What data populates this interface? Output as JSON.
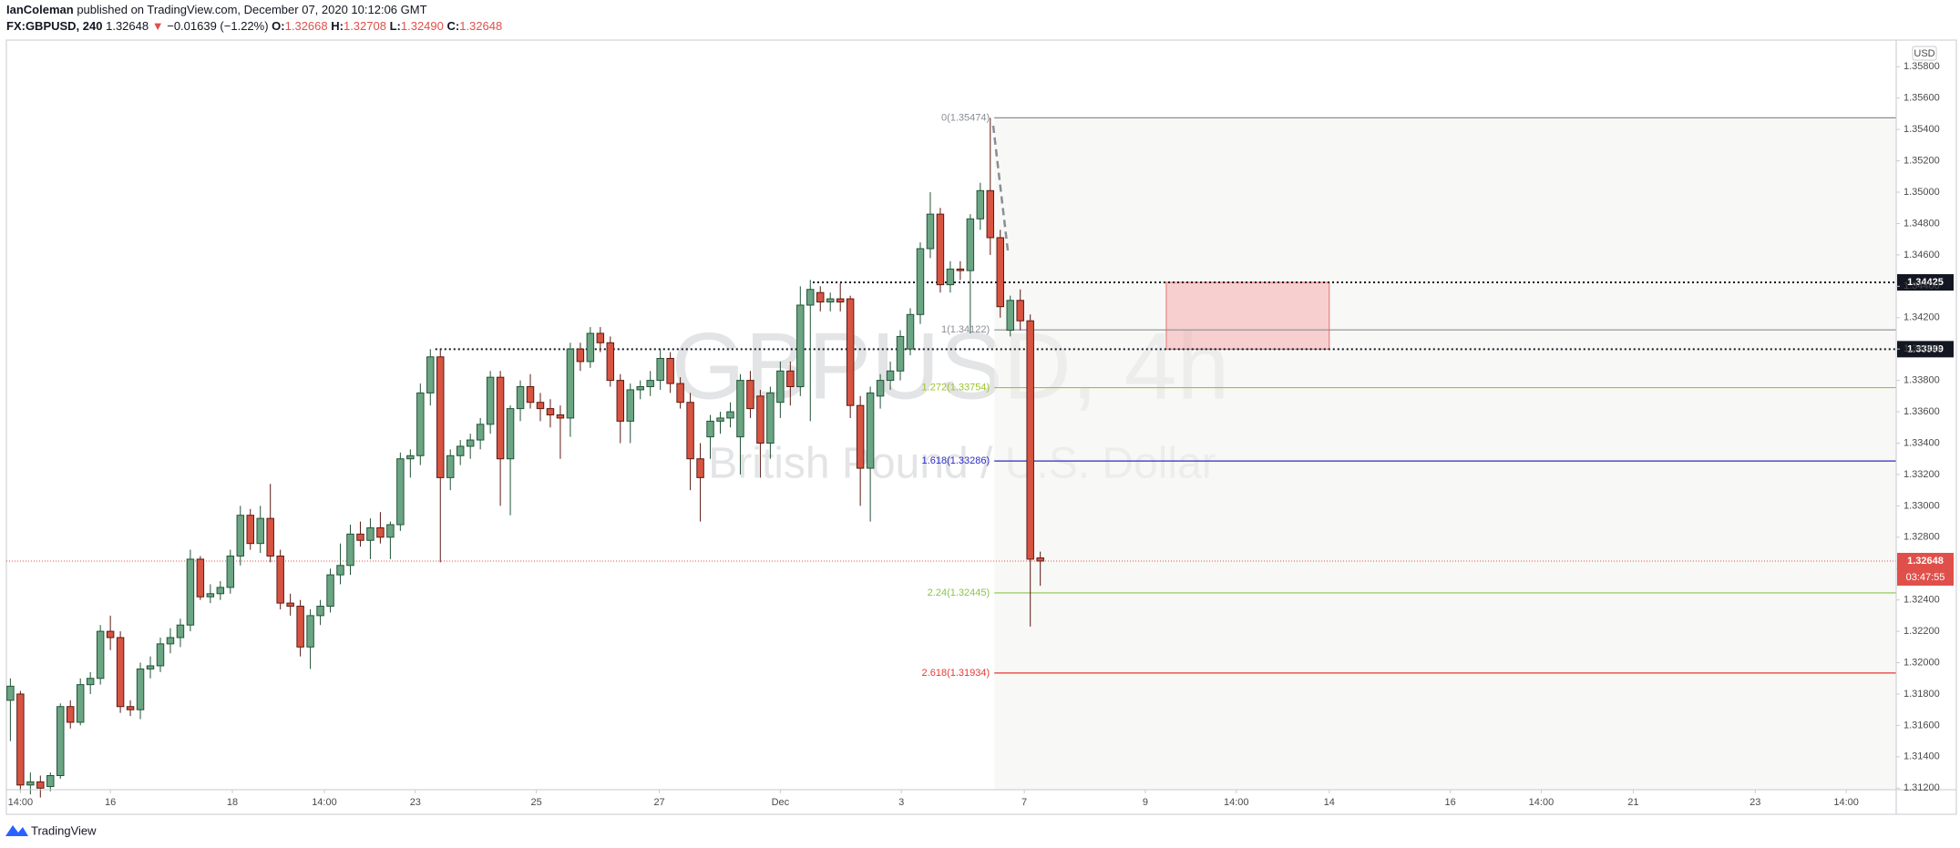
{
  "header": {
    "author": "IanColeman",
    "published": "published on TradingView.com, December 07, 2020 10:12:06 GMT",
    "symbol": "FX:GBPUSD, 240",
    "last": "1.32648",
    "arrow": "▼",
    "change": "−0.01639 (−1.22%)",
    "ohlc": [
      {
        "label": "O:",
        "value": "1.32668"
      },
      {
        "label": "H:",
        "value": "1.32708"
      },
      {
        "label": "L:",
        "value": "1.32490"
      },
      {
        "label": "C:",
        "value": "1.32648"
      }
    ]
  },
  "footer": {
    "brand": "TradingView"
  },
  "chart_data": {
    "type": "candlestick",
    "currency": "USD",
    "watermark_title": "GBPUSD, 4h",
    "watermark_subtitle": "British Pound / U.S. Dollar",
    "up_color": "#6ba583",
    "down_color": "#d75442",
    "up_border": "#225437",
    "down_border": "#5b1a13",
    "grid": false,
    "xlim": [
      -0.4,
      188.6
    ],
    "ylim": [
      1.3119,
      1.3597
    ],
    "xticks": [
      {
        "value": 1,
        "label": "14:00"
      },
      {
        "value": 10,
        "label": "16"
      },
      {
        "value": 22.2,
        "label": "18"
      },
      {
        "value": 31.4,
        "label": "14:00"
      },
      {
        "value": 40.5,
        "label": "23"
      },
      {
        "value": 52.6,
        "label": "25"
      },
      {
        "value": 64.9,
        "label": "27"
      },
      {
        "value": 77,
        "label": "Dec"
      },
      {
        "value": 89.1,
        "label": "3"
      },
      {
        "value": 101.4,
        "label": "7"
      },
      {
        "value": 113.5,
        "label": "9"
      },
      {
        "value": 122.6,
        "label": "14:00"
      },
      {
        "value": 131.9,
        "label": "14"
      },
      {
        "value": 144,
        "label": "16"
      },
      {
        "value": 153.1,
        "label": "14:00"
      },
      {
        "value": 162.3,
        "label": "21"
      },
      {
        "value": 174.5,
        "label": "23"
      },
      {
        "value": 183.6,
        "label": "14:00"
      }
    ],
    "yticks": [
      {
        "value": 1.312,
        "label": "1.31200"
      },
      {
        "value": 1.314,
        "label": "1.31400"
      },
      {
        "value": 1.316,
        "label": "1.31600"
      },
      {
        "value": 1.318,
        "label": "1.31800"
      },
      {
        "value": 1.32,
        "label": "1.32000"
      },
      {
        "value": 1.322,
        "label": "1.32200"
      },
      {
        "value": 1.324,
        "label": "1.32400"
      },
      {
        "value": 1.326,
        "label": "1.32600"
      },
      {
        "value": 1.328,
        "label": "1.32800"
      },
      {
        "value": 1.33,
        "label": "1.33000"
      },
      {
        "value": 1.332,
        "label": "1.33200"
      },
      {
        "value": 1.334,
        "label": "1.33400"
      },
      {
        "value": 1.336,
        "label": "1.33600"
      },
      {
        "value": 1.338,
        "label": "1.33800"
      },
      {
        "value": 1.34,
        "label": "1.34000"
      },
      {
        "value": 1.342,
        "label": "1.34200"
      },
      {
        "value": 1.344,
        "label": "1.34400"
      },
      {
        "value": 1.346,
        "label": "1.34600"
      },
      {
        "value": 1.348,
        "label": "1.34800"
      },
      {
        "value": 1.35,
        "label": "1.35000"
      },
      {
        "value": 1.352,
        "label": "1.35200"
      },
      {
        "value": 1.354,
        "label": "1.35400"
      },
      {
        "value": 1.356,
        "label": "1.35600"
      },
      {
        "value": 1.358,
        "label": "1.35800"
      }
    ],
    "open": [
      1.3176,
      1.318,
      1.3122,
      1.3124,
      1.3121,
      1.3128,
      1.3172,
      1.3162,
      1.3186,
      1.319,
      1.322,
      1.3216,
      1.3172,
      1.317,
      1.3196,
      1.3198,
      1.3212,
      1.3216,
      1.3224,
      1.3266,
      1.3242,
      1.3244,
      1.3248,
      1.3268,
      1.3294,
      1.3276,
      1.3292,
      1.3268,
      1.3238,
      1.3236,
      1.321,
      1.323,
      1.3236,
      1.3256,
      1.3262,
      1.3282,
      1.3278,
      1.3286,
      1.328,
      1.3288,
      1.333,
      1.3332,
      1.3372,
      1.3395,
      1.3318,
      1.3332,
      1.3338,
      1.3342,
      1.3352,
      1.3382,
      1.333,
      1.3362,
      1.3376,
      1.3366,
      1.3362,
      1.3358,
      1.3356,
      1.34,
      1.3392,
      1.341,
      1.3404,
      1.338,
      1.3354,
      1.3374,
      1.3376,
      1.338,
      1.3394,
      1.3378,
      1.3366,
      1.333,
      1.3344,
      1.3354,
      1.3356,
      1.3344,
      1.338,
      1.337,
      1.334,
      1.3366,
      1.3386,
      1.3376,
      1.3428,
      1.3436,
      1.343,
      1.3432,
      1.3432,
      1.3364,
      1.3324,
      1.337,
      1.338,
      1.3386,
      1.34,
      1.3422,
      1.3464,
      1.3486,
      1.3441,
      1.3451,
      1.345,
      1.3483,
      1.3501,
      1.3471,
      1.3412,
      1.3431,
      1.3418,
      1.32668
    ],
    "high": [
      1.319,
      1.3182,
      1.313,
      1.3128,
      1.313,
      1.3174,
      1.3176,
      1.319,
      1.3194,
      1.3224,
      1.323,
      1.322,
      1.3176,
      1.32,
      1.3204,
      1.3216,
      1.3222,
      1.3228,
      1.3272,
      1.3268,
      1.325,
      1.3252,
      1.3272,
      1.33,
      1.3298,
      1.33,
      1.3314,
      1.3272,
      1.3244,
      1.324,
      1.3234,
      1.324,
      1.326,
      1.3276,
      1.3288,
      1.329,
      1.3292,
      1.3296,
      1.329,
      1.3334,
      1.3336,
      1.3378,
      1.34,
      1.34,
      1.3336,
      1.3342,
      1.3346,
      1.3356,
      1.3386,
      1.3386,
      1.3364,
      1.338,
      1.3384,
      1.3372,
      1.3368,
      1.3364,
      1.3404,
      1.3404,
      1.3414,
      1.3414,
      1.3408,
      1.3384,
      1.3378,
      1.338,
      1.3386,
      1.34,
      1.3398,
      1.3382,
      1.3372,
      1.334,
      1.3358,
      1.336,
      1.3366,
      1.3384,
      1.3386,
      1.3374,
      1.3376,
      1.3392,
      1.3392,
      1.344,
      1.3444,
      1.344,
      1.3436,
      1.3442,
      1.3434,
      1.337,
      1.3376,
      1.3384,
      1.3392,
      1.3412,
      1.3426,
      1.3468,
      1.35,
      1.349,
      1.3456,
      1.3456,
      1.3486,
      1.3506,
      1.35474,
      1.3476,
      1.3434,
      1.3438,
      1.3422,
      1.32708
    ],
    "low": [
      1.315,
      1.3118,
      1.3116,
      1.3114,
      1.3118,
      1.3126,
      1.3158,
      1.316,
      1.318,
      1.3186,
      1.3208,
      1.3168,
      1.3166,
      1.3164,
      1.319,
      1.3194,
      1.3206,
      1.321,
      1.322,
      1.324,
      1.3238,
      1.324,
      1.3244,
      1.3262,
      1.3272,
      1.327,
      1.3264,
      1.3234,
      1.323,
      1.3204,
      1.3196,
      1.3224,
      1.3232,
      1.325,
      1.3256,
      1.3274,
      1.3266,
      1.3276,
      1.3266,
      1.3284,
      1.3318,
      1.3326,
      1.3364,
      1.3264,
      1.331,
      1.3326,
      1.333,
      1.3336,
      1.3346,
      1.33,
      1.3294,
      1.3354,
      1.3362,
      1.3354,
      1.335,
      1.333,
      1.3344,
      1.3386,
      1.3388,
      1.3398,
      1.3376,
      1.334,
      1.334,
      1.3368,
      1.337,
      1.3374,
      1.3372,
      1.3362,
      1.331,
      1.329,
      1.333,
      1.3346,
      1.335,
      1.332,
      1.3356,
      1.3318,
      1.333,
      1.3356,
      1.3364,
      1.337,
      1.3354,
      1.3424,
      1.3424,
      1.3424,
      1.3356,
      1.33,
      1.329,
      1.3362,
      1.3374,
      1.338,
      1.3396,
      1.3416,
      1.3458,
      1.3436,
      1.3436,
      1.3444,
      1.341,
      1.3476,
      1.346,
      1.342,
      1.3408,
      1.3412,
      1.3223,
      1.3249
    ],
    "close": [
      1.3185,
      1.3122,
      1.3124,
      1.312,
      1.3128,
      1.3172,
      1.3162,
      1.3186,
      1.319,
      1.322,
      1.3216,
      1.3172,
      1.317,
      1.3196,
      1.3198,
      1.3212,
      1.3216,
      1.3224,
      1.3266,
      1.3242,
      1.3244,
      1.3248,
      1.3268,
      1.3294,
      1.3276,
      1.3292,
      1.3268,
      1.3238,
      1.3236,
      1.321,
      1.323,
      1.3236,
      1.3256,
      1.3262,
      1.3282,
      1.3278,
      1.3286,
      1.328,
      1.3288,
      1.333,
      1.3332,
      1.3372,
      1.3395,
      1.3318,
      1.3332,
      1.3338,
      1.3342,
      1.3352,
      1.3382,
      1.333,
      1.3362,
      1.3376,
      1.3366,
      1.3362,
      1.3358,
      1.3356,
      1.34,
      1.3392,
      1.341,
      1.3404,
      1.338,
      1.3354,
      1.3374,
      1.3376,
      1.338,
      1.3394,
      1.3378,
      1.3366,
      1.333,
      1.3318,
      1.3354,
      1.3356,
      1.336,
      1.338,
      1.3362,
      1.334,
      1.3372,
      1.3386,
      1.3376,
      1.3428,
      1.3438,
      1.343,
      1.3432,
      1.343,
      1.3364,
      1.3324,
      1.3372,
      1.338,
      1.3386,
      1.3408,
      1.3422,
      1.3464,
      1.3486,
      1.3441,
      1.3451,
      1.345,
      1.3483,
      1.3501,
      1.3471,
      1.3427,
      1.3431,
      1.3418,
      1.3266,
      1.32648
    ],
    "fib_levels": [
      {
        "label": "0(1.35474)",
        "value": 1.35474,
        "color": "#8a8d96"
      },
      {
        "label": "1(1.34122)",
        "value": 1.34122,
        "color": "#8a8d96"
      },
      {
        "label": "1.272(1.33754)",
        "value": 1.33754,
        "color": "#9cc32e"
      },
      {
        "label": "1.618(1.33286)",
        "value": 1.33286,
        "color": "#2b2bc8"
      },
      {
        "label": "2.24(1.32445)",
        "value": 1.32445,
        "color": "#8bc34a"
      },
      {
        "label": "2.618(1.31934)",
        "value": 1.31934,
        "color": "#e53935"
      }
    ],
    "levels": [
      {
        "value": 1.34425,
        "label": "1.34425"
      },
      {
        "value": 1.33999,
        "label": "1.33999"
      }
    ],
    "zone": {
      "top": 1.34425,
      "bottom": 1.33999,
      "color": "#f4a6a6"
    },
    "current_price": {
      "value": 1.32648,
      "label": "1.32648",
      "countdown": "03:47:55",
      "color": "#e0504a"
    }
  }
}
